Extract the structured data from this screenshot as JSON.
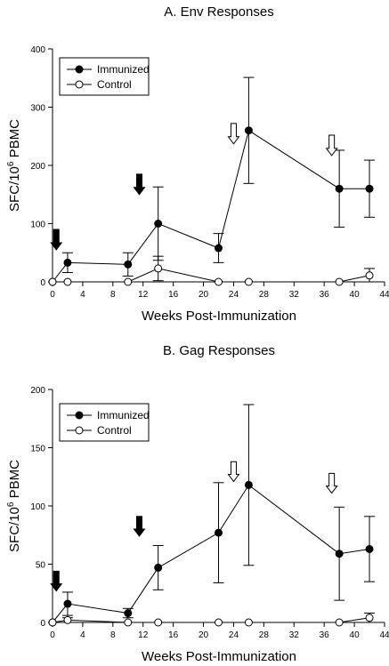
{
  "chart_data": [
    {
      "type": "line",
      "title": "A.  Env Responses",
      "xlabel": "Weeks Post-Immunization",
      "ylabel_main": "SFC/10",
      "ylabel_sup": "6",
      "ylabel_tail": " PBMC",
      "xlim": [
        0,
        44
      ],
      "ylim": [
        0,
        400
      ],
      "x_ticks": [
        0,
        4,
        8,
        12,
        16,
        20,
        24,
        28,
        32,
        36,
        40,
        44
      ],
      "y_ticks": [
        0,
        100,
        200,
        300,
        400
      ],
      "legend_position": "top-left",
      "series": [
        {
          "name": "Immunized",
          "marker": "filled-circle",
          "points": [
            {
              "x": 0,
              "y": 0,
              "err": 0
            },
            {
              "x": 2,
              "y": 33,
              "err": 17
            },
            {
              "x": 10,
              "y": 30,
              "err": 20
            },
            {
              "x": 14,
              "y": 100,
              "err": 63
            },
            {
              "x": 22,
              "y": 58,
              "err": 25
            },
            {
              "x": 26,
              "y": 260,
              "err": 91
            },
            {
              "x": 38,
              "y": 160,
              "err": 66
            },
            {
              "x": 42,
              "y": 160,
              "err": 49
            }
          ]
        },
        {
          "name": "Control",
          "marker": "open-circle",
          "points": [
            {
              "x": 0,
              "y": 0,
              "err": 0
            },
            {
              "x": 2,
              "y": 0,
              "err": 0
            },
            {
              "x": 10,
              "y": 0,
              "err": 0
            },
            {
              "x": 14,
              "y": 23,
              "err": 21
            },
            {
              "x": 22,
              "y": 0,
              "err": 0
            },
            {
              "x": 26,
              "y": 0,
              "err": 0
            },
            {
              "x": 38,
              "y": 0,
              "err": 0
            },
            {
              "x": 42,
              "y": 11,
              "err": 12
            }
          ]
        }
      ],
      "arrows": [
        {
          "x": 0.5,
          "style": "filled",
          "y_top": 90,
          "y_bottom": 55
        },
        {
          "x": 11.5,
          "style": "filled",
          "y_top": 185,
          "y_bottom": 150
        },
        {
          "x": 24,
          "style": "open",
          "y_top": 272,
          "y_bottom": 237
        },
        {
          "x": 37,
          "style": "open",
          "y_top": 252,
          "y_bottom": 217
        }
      ]
    },
    {
      "type": "line",
      "title": "B.  Gag Responses",
      "xlabel": "Weeks Post-Immunization",
      "ylabel_main": "SFC/10",
      "ylabel_sup": "6",
      "ylabel_tail": " PBMC",
      "xlim": [
        0,
        44
      ],
      "ylim": [
        0,
        200
      ],
      "x_ticks": [
        0,
        4,
        8,
        12,
        16,
        20,
        24,
        28,
        32,
        36,
        40,
        44
      ],
      "y_ticks": [
        0,
        50,
        100,
        150,
        200
      ],
      "legend_position": "top-left",
      "series": [
        {
          "name": "Immunized",
          "marker": "filled-circle",
          "points": [
            {
              "x": 0,
              "y": 0,
              "err": 0
            },
            {
              "x": 2,
              "y": 16,
              "err": 10
            },
            {
              "x": 10,
              "y": 8,
              "err": 4
            },
            {
              "x": 14,
              "y": 47,
              "err": 19
            },
            {
              "x": 22,
              "y": 77,
              "err": 43
            },
            {
              "x": 26,
              "y": 118,
              "err": 69
            },
            {
              "x": 38,
              "y": 59,
              "err": 40
            },
            {
              "x": 42,
              "y": 63,
              "err": 28
            }
          ]
        },
        {
          "name": "Control",
          "marker": "open-circle",
          "points": [
            {
              "x": 0,
              "y": 0,
              "err": 0
            },
            {
              "x": 2,
              "y": 2,
              "err": 2
            },
            {
              "x": 10,
              "y": 0,
              "err": 0
            },
            {
              "x": 14,
              "y": 0,
              "err": 0
            },
            {
              "x": 22,
              "y": 0,
              "err": 0
            },
            {
              "x": 26,
              "y": 0,
              "err": 0
            },
            {
              "x": 38,
              "y": 0,
              "err": 0
            },
            {
              "x": 42,
              "y": 4,
              "err": 4
            }
          ]
        }
      ],
      "arrows": [
        {
          "x": 0.5,
          "style": "filled",
          "y_top": 44,
          "y_bottom": 27
        },
        {
          "x": 11.5,
          "style": "filled",
          "y_top": 91,
          "y_bottom": 74
        },
        {
          "x": 24,
          "style": "open",
          "y_top": 138,
          "y_bottom": 121
        },
        {
          "x": 37,
          "style": "open",
          "y_top": 128,
          "y_bottom": 111
        }
      ]
    }
  ]
}
